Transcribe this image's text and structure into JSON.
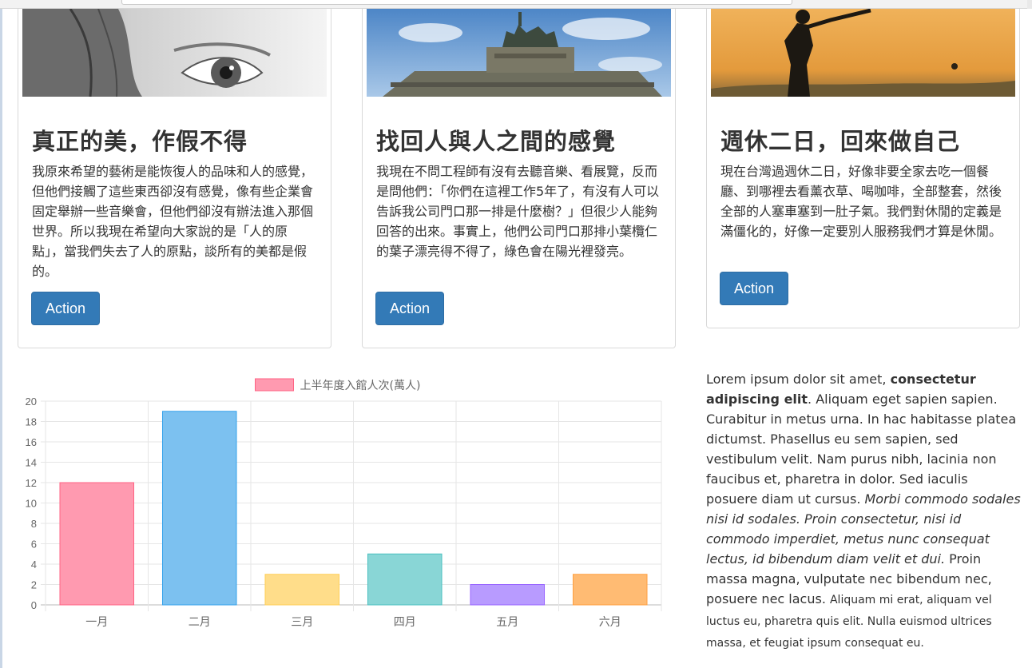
{
  "cards": [
    {
      "title": "真正的美，作假不得",
      "text": "我原來希望的藝術是能恢復人的品味和人的感覺，但他們接觸了這些東西卻沒有感覺，像有些企業會固定舉辦一些音樂會，但他們卻沒有辦法進入那個世界。所以我現在希望向大家說的是「人的原點」，當我們失去了人的原點，談所有的美都是假的。",
      "button": "Action"
    },
    {
      "title": "找回人與人之間的感覺",
      "text": "我現在不問工程師有沒有去聽音樂、看展覽，反而是問他們：「你們在這裡工作5年了，有沒有人可以告訴我公司門口那一排是什麼樹？」但很少人能夠回答的出來。事實上，他們公司門口那排小葉欖仁的葉子漂亮得不得了，綠色會在陽光裡發亮。",
      "button": "Action"
    },
    {
      "title": "週休二日，回來做自己",
      "text": "現在台灣過週休二日，好像非要全家去吃一個餐廳、到哪裡去看薰衣草、喝咖啡，全部整套，然後全部的人塞車塞到一肚子氣。我們對休閒的定義是滿僵化的，好像一定要別人服務我們才算是休閒。",
      "button": "Action"
    }
  ],
  "chart_data": {
    "type": "bar",
    "categories": [
      "一月",
      "二月",
      "三月",
      "四月",
      "五月",
      "六月"
    ],
    "series": [
      {
        "name": "上半年度入館人次(萬人)",
        "values": [
          12,
          19,
          3,
          5,
          2,
          3
        ]
      }
    ],
    "colors": {
      "fill": [
        "#ff9ab0",
        "#7cc1f0",
        "#ffdd8a",
        "#89d6d6",
        "#b89bff",
        "#ffbb73"
      ],
      "stroke": [
        "#ff6384",
        "#36a2eb",
        "#ffce56",
        "#4bc0c0",
        "#9966ff",
        "#ff9f40"
      ]
    },
    "ylim": [
      0,
      20
    ],
    "yticks": [
      "0",
      "2",
      "4",
      "6",
      "8",
      "10",
      "12",
      "14",
      "16",
      "18",
      "20"
    ],
    "grid": true,
    "legend_position": "top"
  },
  "lorem": {
    "p1": "Lorem ipsum dolor sit amet, ",
    "p2": "consectetur adipiscing elit",
    "p3": ". Aliquam eget sapien sapien. Curabitur in metus urna. In hac habitasse platea dictumst. Phasellus eu sem sapien, sed vestibulum velit. Nam purus nibh, lacinia non faucibus et, pharetra in dolor. Sed iaculis posuere diam ut cursus. ",
    "p4": "Morbi commodo sodales nisi id sodales. Proin consectetur, nisi id commodo imperdiet, metus nunc consequat lectus, id bibendum diam velit et dui.",
    "p5": " Proin massa magna, vulputate nec bibendum nec, posuere nec lacus. ",
    "p6": "Aliquam mi erat, aliquam vel luctus eu, pharetra quis elit. Nulla euismod ultrices massa, et feugiat ipsum consequat eu."
  }
}
